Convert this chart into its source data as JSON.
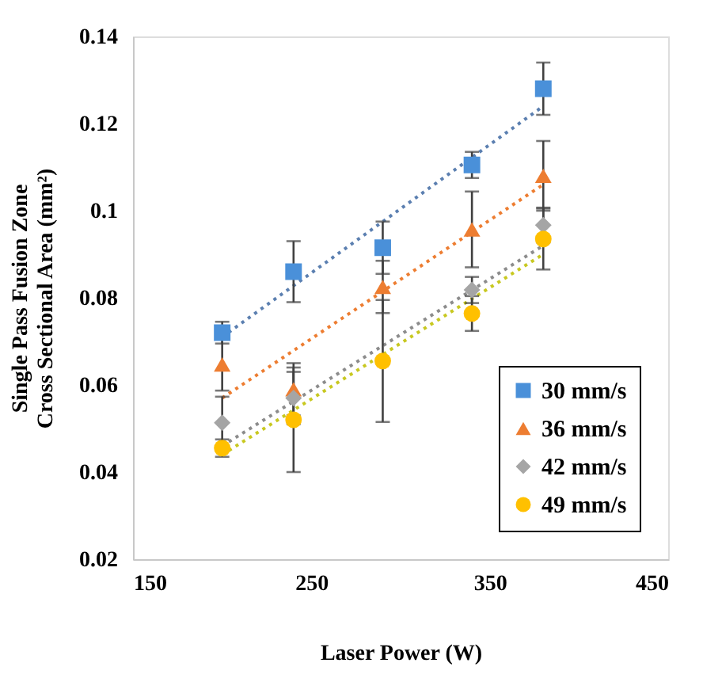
{
  "chart_data": {
    "type": "scatter",
    "xlabel": "Laser Power (W)",
    "ylabel": "Single Pass Fusion Zone\nCross Sectional Area (mm²)",
    "xlim": [
      150,
      450
    ],
    "xticks": [
      150,
      250,
      350,
      450
    ],
    "ylim": [
      0.02,
      0.14
    ],
    "yticks": [
      0.02,
      0.04,
      0.06,
      0.08,
      0.1,
      0.12,
      0.14
    ],
    "grid": false,
    "legend": "bottom right",
    "series": [
      {
        "name": "30 mm/s",
        "color": "#4a90d9",
        "marker": "square",
        "x": [
          200,
          240,
          290,
          340,
          380
        ],
        "values": [
          0.072,
          0.086,
          0.0915,
          0.1105,
          0.128
        ],
        "errors": [
          0.0025,
          0.007,
          0.006,
          0.003,
          0.006
        ]
      },
      {
        "name": "36 mm/s",
        "color": "#ed7d31",
        "marker": "triangle",
        "x": [
          200,
          240,
          290,
          340,
          380
        ],
        "values": [
          0.0647,
          0.059,
          0.0825,
          0.0957,
          0.108
        ],
        "errors": [
          0.006,
          0.006,
          0.006,
          0.0087,
          0.008
        ]
      },
      {
        "name": "42 mm/s",
        "color": "#a5a5a5",
        "marker": "diamond",
        "x": [
          200,
          240,
          290,
          340,
          380
        ],
        "values": [
          0.0513,
          0.057,
          null,
          0.0818,
          0.0967
        ],
        "errors": [
          0.006,
          0.006,
          null,
          0.003,
          0.004
        ]
      },
      {
        "name": "49 mm/s",
        "color": "#ffc000",
        "marker": "circle",
        "x": [
          200,
          240,
          290,
          340,
          380
        ],
        "values": [
          0.0455,
          0.052,
          0.0655,
          0.0764,
          0.0935
        ],
        "errors": [
          0.002,
          0.012,
          0.014,
          0.004,
          0.007
        ]
      },
      {
        "type": "line",
        "line_style": "dotted",
        "color": "#5b7fb0",
        "x": [
          200,
          380
        ],
        "values": [
          0.071,
          0.124
        ]
      },
      {
        "type": "line",
        "line_style": "dotted",
        "color": "#ed7d31",
        "x": [
          200,
          380
        ],
        "values": [
          0.057,
          0.106
        ]
      },
      {
        "type": "line",
        "line_style": "dotted",
        "color": "#8c8c8c",
        "x": [
          200,
          380
        ],
        "values": [
          0.046,
          0.092
        ]
      },
      {
        "type": "line",
        "line_style": "dotted",
        "color": "#c8c820",
        "x": [
          200,
          380
        ],
        "values": [
          0.044,
          0.09
        ]
      }
    ]
  }
}
